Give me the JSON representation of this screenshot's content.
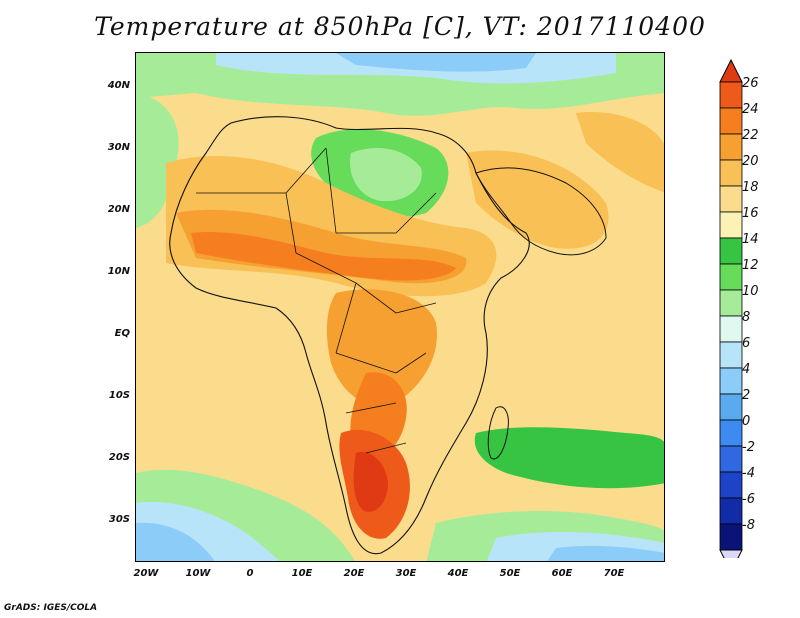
{
  "title": "Temperature at 850hPa [C], VT: 2017110400",
  "credit": "GrADS: IGES/COLA",
  "map": {
    "lon_range": [
      -22,
      80
    ],
    "lat_range": [
      -37,
      45
    ],
    "lat_ticks": [
      "40N",
      "30N",
      "20N",
      "10N",
      "EQ",
      "10S",
      "20S",
      "30S"
    ],
    "lon_ticks": [
      "20W",
      "10W",
      "0",
      "10E",
      "20E",
      "30E",
      "40E",
      "50E",
      "60E",
      "70E"
    ],
    "background_color": "#fbe8a0"
  },
  "colorbar": {
    "labels": [
      "26",
      "24",
      "22",
      "20",
      "18",
      "16",
      "14",
      "12",
      "10",
      "8",
      "6",
      "4",
      "2",
      "0",
      "-2",
      "-4",
      "-6",
      "-8"
    ],
    "colors": [
      "#e03a14",
      "#ee5a1a",
      "#f57f1f",
      "#f7a032",
      "#f9c055",
      "#fbdc8c",
      "#fdf2b6",
      "#37c442",
      "#67dc5a",
      "#a6ec98",
      "#dff8f0",
      "#b8e4fa",
      "#8cccf8",
      "#5aaaf0",
      "#3d8af0",
      "#2f68e0",
      "#1d44c8",
      "#122ca8",
      "#0a1478",
      "#dcd8f8"
    ]
  }
}
